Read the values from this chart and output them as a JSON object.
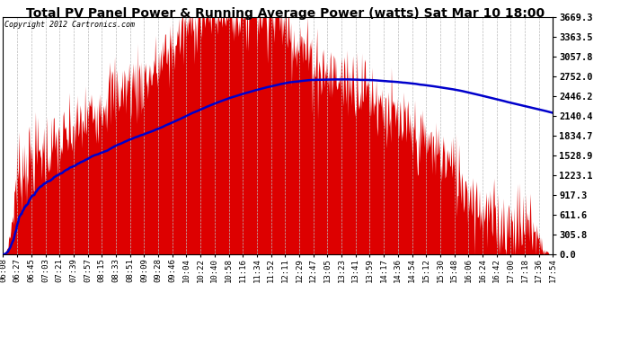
{
  "title": "Total PV Panel Power & Running Average Power (watts) Sat Mar 10 18:00",
  "copyright": "Copyright 2012 Cartronics.com",
  "yticks": [
    0.0,
    305.8,
    611.6,
    917.3,
    1223.1,
    1528.9,
    1834.7,
    2140.4,
    2446.2,
    2752.0,
    3057.8,
    3363.5,
    3669.3
  ],
  "ymax": 3669.3,
  "background_color": "#ffffff",
  "fill_color": "#dd0000",
  "line_color": "#0000cc",
  "grid_color": "#bbbbbb",
  "x_labels": [
    "06:08",
    "06:27",
    "06:45",
    "07:03",
    "07:21",
    "07:39",
    "07:57",
    "08:15",
    "08:33",
    "08:51",
    "09:09",
    "09:28",
    "09:46",
    "10:04",
    "10:22",
    "10:40",
    "10:58",
    "11:16",
    "11:34",
    "11:52",
    "12:11",
    "12:29",
    "12:47",
    "13:05",
    "13:23",
    "13:41",
    "13:59",
    "14:17",
    "14:36",
    "14:54",
    "15:12",
    "15:30",
    "15:48",
    "16:06",
    "16:24",
    "16:42",
    "17:00",
    "17:18",
    "17:36",
    "17:54"
  ],
  "title_fontsize": 10,
  "tick_fontsize": 6.5,
  "ytick_fontsize": 7.5,
  "copyright_fontsize": 6
}
